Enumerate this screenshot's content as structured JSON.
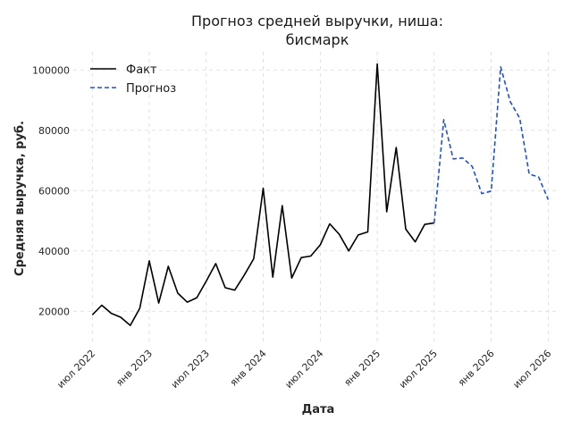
{
  "chart_data": {
    "type": "line",
    "title_lines": [
      "Прогноз средней выручки, ниша:",
      "бисмарк"
    ],
    "xlabel": "Дата",
    "ylabel": "Средняя выручка, руб.",
    "x_ticks": [
      "2022-07",
      "2023-01",
      "2023-07",
      "2024-01",
      "2024-07",
      "2025-01",
      "2025-07",
      "2026-01",
      "2026-07"
    ],
    "x_tick_labels": [
      "июл 2022",
      "янв 2023",
      "июл 2023",
      "янв 2024",
      "июл 2024",
      "янв 2025",
      "июл 2025",
      "янв 2026",
      "июл 2026"
    ],
    "y_ticks": [
      20000,
      40000,
      60000,
      80000,
      100000
    ],
    "y_tick_labels": [
      "20000",
      "40000",
      "60000",
      "80000",
      "100000"
    ],
    "ylim": [
      10000,
      106000
    ],
    "xlim": [
      "2022-05",
      "2026-08"
    ],
    "grid": true,
    "legend_position": "top-left",
    "series": [
      {
        "name": "Факт",
        "color": "#000000",
        "style": "solid",
        "points": [
          [
            "2022-07",
            18800
          ],
          [
            "2022-08",
            22000
          ],
          [
            "2022-09",
            19300
          ],
          [
            "2022-10",
            18000
          ],
          [
            "2022-11",
            15300
          ],
          [
            "2022-12",
            21000
          ],
          [
            "2023-01",
            36700
          ],
          [
            "2023-02",
            22700
          ],
          [
            "2023-03",
            34900
          ],
          [
            "2023-04",
            26000
          ],
          [
            "2023-05",
            23000
          ],
          [
            "2023-06",
            24500
          ],
          [
            "2023-07",
            30000
          ],
          [
            "2023-08",
            35800
          ],
          [
            "2023-09",
            27800
          ],
          [
            "2023-10",
            27000
          ],
          [
            "2023-11",
            32000
          ],
          [
            "2023-12",
            37400
          ],
          [
            "2024-01",
            60800
          ],
          [
            "2024-02",
            31300
          ],
          [
            "2024-03",
            55000
          ],
          [
            "2024-04",
            31000
          ],
          [
            "2024-05",
            37800
          ],
          [
            "2024-06",
            38300
          ],
          [
            "2024-07",
            42000
          ],
          [
            "2024-08",
            49000
          ],
          [
            "2024-09",
            45500
          ],
          [
            "2024-10",
            40000
          ],
          [
            "2024-11",
            45300
          ],
          [
            "2024-12",
            46300
          ],
          [
            "2025-01",
            102000
          ],
          [
            "2025-02",
            53000
          ],
          [
            "2025-03",
            74300
          ],
          [
            "2025-04",
            47200
          ],
          [
            "2025-05",
            43000
          ],
          [
            "2025-06",
            48800
          ],
          [
            "2025-07",
            49300
          ]
        ]
      },
      {
        "name": "Прогноз",
        "color": "#1f4fd6",
        "style": "dashed",
        "points": [
          [
            "2025-07",
            49300
          ],
          [
            "2025-08",
            83500
          ],
          [
            "2025-09",
            70500
          ],
          [
            "2025-10",
            70800
          ],
          [
            "2025-11",
            68000
          ],
          [
            "2025-12",
            59000
          ],
          [
            "2026-01",
            59800
          ],
          [
            "2026-02",
            101000
          ],
          [
            "2026-03",
            89500
          ],
          [
            "2026-04",
            84000
          ],
          [
            "2026-05",
            65500
          ],
          [
            "2026-06",
            64500
          ],
          [
            "2026-07",
            57000
          ]
        ]
      }
    ]
  }
}
